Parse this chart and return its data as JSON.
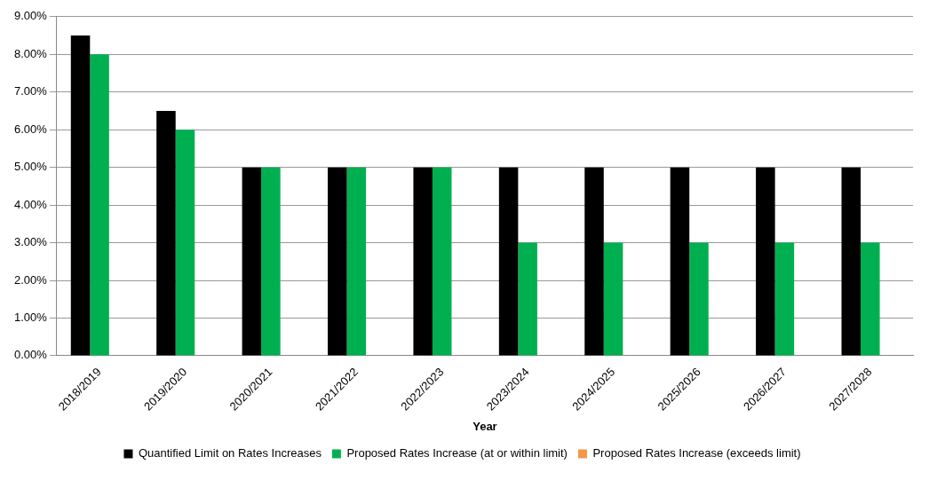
{
  "chart_data": {
    "type": "bar",
    "xlabel": "Year",
    "categories": [
      "2018/2019",
      "2019/2020",
      "2020/2021",
      "2021/2022",
      "2022/2023",
      "2023/2024",
      "2024/2025",
      "2025/2026",
      "2026/2027",
      "2027/2028"
    ],
    "series": [
      {
        "name": "Quantified Limit on Rates Increases",
        "color": "#000000",
        "values": [
          8.5,
          6.5,
          5,
          5,
          5,
          5,
          5,
          5,
          5,
          5
        ]
      },
      {
        "name": "Proposed Rates Increase (at or within limit)",
        "color": "#00b050",
        "values": [
          8,
          6,
          5,
          5,
          5,
          3,
          3,
          3,
          3,
          3
        ]
      },
      {
        "name": "Proposed Rates Increase (exceeds limit)",
        "color": "#f79646",
        "values": [
          null,
          null,
          null,
          null,
          null,
          null,
          null,
          null,
          null,
          null
        ]
      }
    ],
    "ylim": [
      0,
      9
    ],
    "yticks": [
      {
        "value": 0,
        "label": "0.00%"
      },
      {
        "value": 1,
        "label": "1.00%"
      },
      {
        "value": 2,
        "label": "2.00%"
      },
      {
        "value": 3,
        "label": "3.00%"
      },
      {
        "value": 4,
        "label": "4.00%"
      },
      {
        "value": 5,
        "label": "5.00%"
      },
      {
        "value": 6,
        "label": "6.00%"
      },
      {
        "value": 7,
        "label": "7.00%"
      },
      {
        "value": 8,
        "label": "8.00%"
      },
      {
        "value": 9,
        "label": "9.00%"
      }
    ],
    "grid": "y",
    "legend": "bottom"
  }
}
